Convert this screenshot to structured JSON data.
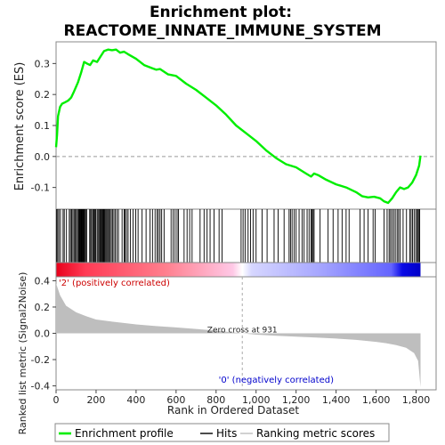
{
  "chart_data": {
    "type": "line",
    "title_line1": "Enrichment plot:",
    "title_line2": "REACTOME_INNATE_IMMUNE_SYSTEM",
    "es_panel": {
      "ylabel": "Enrichment score (ES)",
      "ylim": [
        -0.17,
        0.37
      ],
      "yticks": [
        -0.1,
        0.0,
        0.1,
        0.2,
        0.3
      ],
      "ytick_labels": [
        "-0.1",
        "0.0",
        "0.1",
        "0.2",
        "0.3"
      ],
      "line_color": "#00ee00",
      "es_points": [
        [
          0,
          0.03
        ],
        [
          5,
          0.07
        ],
        [
          10,
          0.13
        ],
        [
          20,
          0.16
        ],
        [
          30,
          0.17
        ],
        [
          45,
          0.175
        ],
        [
          60,
          0.18
        ],
        [
          75,
          0.19
        ],
        [
          90,
          0.21
        ],
        [
          110,
          0.24
        ],
        [
          125,
          0.27
        ],
        [
          140,
          0.305
        ],
        [
          155,
          0.3
        ],
        [
          170,
          0.295
        ],
        [
          185,
          0.31
        ],
        [
          205,
          0.305
        ],
        [
          220,
          0.32
        ],
        [
          240,
          0.34
        ],
        [
          260,
          0.345
        ],
        [
          280,
          0.343
        ],
        [
          300,
          0.345
        ],
        [
          320,
          0.335
        ],
        [
          340,
          0.338
        ],
        [
          360,
          0.33
        ],
        [
          400,
          0.315
        ],
        [
          440,
          0.295
        ],
        [
          480,
          0.285
        ],
        [
          500,
          0.28
        ],
        [
          520,
          0.282
        ],
        [
          560,
          0.265
        ],
        [
          600,
          0.26
        ],
        [
          650,
          0.235
        ],
        [
          700,
          0.215
        ],
        [
          750,
          0.19
        ],
        [
          800,
          0.165
        ],
        [
          850,
          0.135
        ],
        [
          900,
          0.1
        ],
        [
          950,
          0.075
        ],
        [
          1000,
          0.05
        ],
        [
          1050,
          0.02
        ],
        [
          1100,
          -0.005
        ],
        [
          1150,
          -0.025
        ],
        [
          1200,
          -0.035
        ],
        [
          1250,
          -0.055
        ],
        [
          1275,
          -0.065
        ],
        [
          1290,
          -0.055
        ],
        [
          1310,
          -0.06
        ],
        [
          1350,
          -0.075
        ],
        [
          1400,
          -0.09
        ],
        [
          1450,
          -0.1
        ],
        [
          1500,
          -0.115
        ],
        [
          1530,
          -0.128
        ],
        [
          1560,
          -0.132
        ],
        [
          1590,
          -0.13
        ],
        [
          1620,
          -0.135
        ],
        [
          1640,
          -0.145
        ],
        [
          1660,
          -0.15
        ],
        [
          1680,
          -0.135
        ],
        [
          1700,
          -0.115
        ],
        [
          1720,
          -0.1
        ],
        [
          1740,
          -0.105
        ],
        [
          1760,
          -0.1
        ],
        [
          1780,
          -0.085
        ],
        [
          1800,
          -0.06
        ],
        [
          1815,
          -0.03
        ],
        [
          1822,
          0.003
        ]
      ]
    },
    "heat_panel": {
      "left_color": "#ff0000",
      "mid_color": "#ffffff",
      "right_color": "#0000ff"
    },
    "metric_panel": {
      "ylabel": "Ranked list metric (Signal2Noise)",
      "ylim": [
        -0.43,
        0.43
      ],
      "yticks": [
        -0.4,
        -0.2,
        0.0,
        0.2,
        0.4
      ],
      "ytick_labels": [
        "-0.4",
        "-0.2",
        "0.0",
        "0.2",
        "0.4"
      ],
      "metric_points": [
        [
          0,
          0.38
        ],
        [
          20,
          0.29
        ],
        [
          50,
          0.21
        ],
        [
          100,
          0.16
        ],
        [
          150,
          0.13
        ],
        [
          200,
          0.105
        ],
        [
          300,
          0.085
        ],
        [
          400,
          0.068
        ],
        [
          500,
          0.055
        ],
        [
          600,
          0.045
        ],
        [
          700,
          0.033
        ],
        [
          800,
          0.02
        ],
        [
          931,
          0.0
        ],
        [
          1000,
          -0.01
        ],
        [
          1100,
          -0.018
        ],
        [
          1200,
          -0.025
        ],
        [
          1300,
          -0.032
        ],
        [
          1400,
          -0.04
        ],
        [
          1500,
          -0.05
        ],
        [
          1600,
          -0.065
        ],
        [
          1650,
          -0.075
        ],
        [
          1700,
          -0.09
        ],
        [
          1750,
          -0.11
        ],
        [
          1790,
          -0.15
        ],
        [
          1810,
          -0.21
        ],
        [
          1822,
          -0.41
        ]
      ],
      "fill_color": "#bebebe",
      "positive_label": "'2' (positively correlated)",
      "negative_label": "'0' (negatively correlated)",
      "zero_cross_label": "Zero cross at 931",
      "zero_cross": 931
    },
    "xlabel": "Rank in Ordered Dataset",
    "xlim": [
      0,
      1900
    ],
    "xticks": [
      0,
      200,
      400,
      600,
      800,
      1000,
      1200,
      1400,
      1600,
      1800
    ],
    "xtick_labels": [
      "0",
      "200",
      "400",
      "600",
      "800",
      "1,000",
      "1,200",
      "1,400",
      "1,600",
      "1,800"
    ],
    "n_genes": 1822,
    "hits": [
      3,
      8,
      14,
      22,
      35,
      41,
      52,
      66,
      72,
      78,
      84,
      90,
      95,
      101,
      107,
      112,
      116,
      119,
      122,
      125,
      128,
      131,
      134,
      137,
      140,
      144,
      148,
      153,
      168,
      173,
      178,
      184,
      189,
      193,
      198,
      205,
      210,
      215,
      220,
      224,
      228,
      232,
      236,
      240,
      244,
      249,
      254,
      259,
      264,
      270,
      276,
      282,
      289,
      296,
      304,
      312,
      330,
      340,
      345,
      352,
      360,
      372,
      385,
      398,
      410,
      430,
      450,
      470,
      482,
      495,
      505,
      512,
      520,
      528,
      540,
      575,
      585,
      595,
      605,
      612,
      640,
      655,
      668,
      680,
      720,
      740,
      755,
      770,
      790,
      815,
      830,
      925,
      935,
      945,
      960,
      972,
      985,
      1000,
      1030,
      1055,
      1090,
      1110,
      1140,
      1165,
      1172,
      1180,
      1190,
      1200,
      1215,
      1230,
      1240,
      1255,
      1265,
      1275,
      1280,
      1285,
      1290,
      1320,
      1360,
      1385,
      1410,
      1430,
      1450,
      1465,
      1520,
      1540,
      1560,
      1585,
      1595,
      1640,
      1655,
      1665,
      1672,
      1680,
      1688,
      1696,
      1705,
      1712,
      1720,
      1735,
      1752,
      1768,
      1775,
      1782,
      1790,
      1798,
      1805,
      1810,
      1815,
      1818
    ],
    "legend": {
      "items": [
        {
          "label": "Enrichment profile",
          "color": "#00ee00",
          "style": "line-thick"
        },
        {
          "label": "Hits",
          "color": "#000000",
          "style": "line"
        },
        {
          "label": "Ranking metric scores",
          "color": "#bebebe",
          "style": "line"
        }
      ]
    }
  }
}
